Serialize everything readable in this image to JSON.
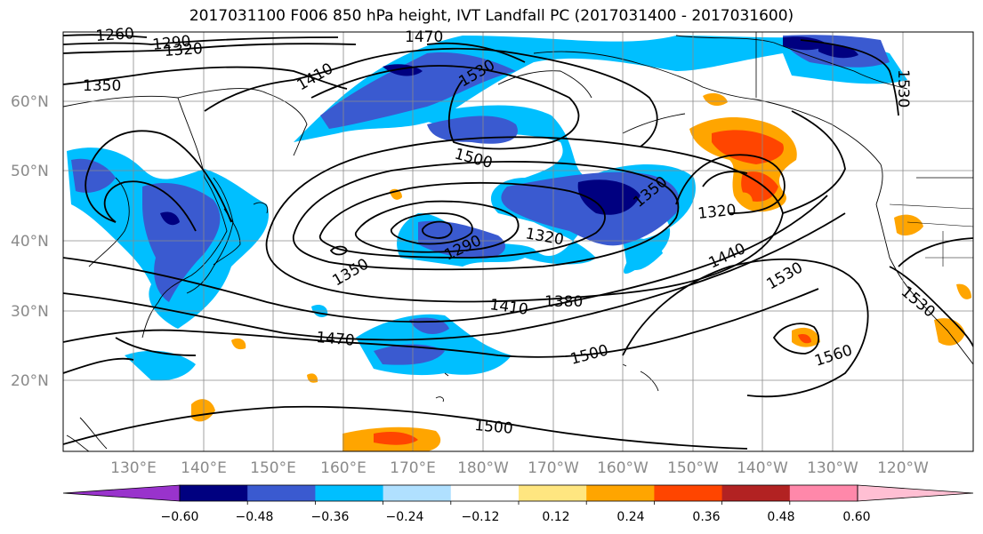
{
  "title": "2017031100 F006 850 hPa height, IVT Landfall PC (2017031400 - 2017031600)",
  "lat_labels": [
    "60°N",
    "50°N",
    "40°N",
    "30°N",
    "20°N"
  ],
  "lon_labels": [
    "130°E",
    "140°E",
    "150°E",
    "160°E",
    "170°E",
    "180°W",
    "170°W",
    "160°W",
    "150°W",
    "140°W",
    "130°W",
    "120°W"
  ],
  "contour_labels": [
    "1260",
    "1290",
    "1320",
    "1350",
    "1410",
    "1530",
    "1500",
    "1350",
    "1320",
    "1290",
    "1320",
    "1440",
    "1530",
    "1350",
    "1410",
    "1380",
    "1470",
    "1500",
    "1560",
    "1530",
    "1500",
    "1470",
    "1530"
  ],
  "colorbar": {
    "ticks": [
      "−0.60",
      "−0.48",
      "−0.36",
      "−0.24",
      "−0.12",
      "0.12",
      "0.24",
      "0.36",
      "0.48",
      "0.60"
    ],
    "colors": [
      "#9933cc",
      "#000080",
      "#3a5ad0",
      "#00bfff",
      "#b0e0ff",
      "#ffffff",
      "#ffe680",
      "#ffa500",
      "#ff4500",
      "#b22222",
      "#ff88aa",
      "#ffbfd3"
    ]
  }
}
